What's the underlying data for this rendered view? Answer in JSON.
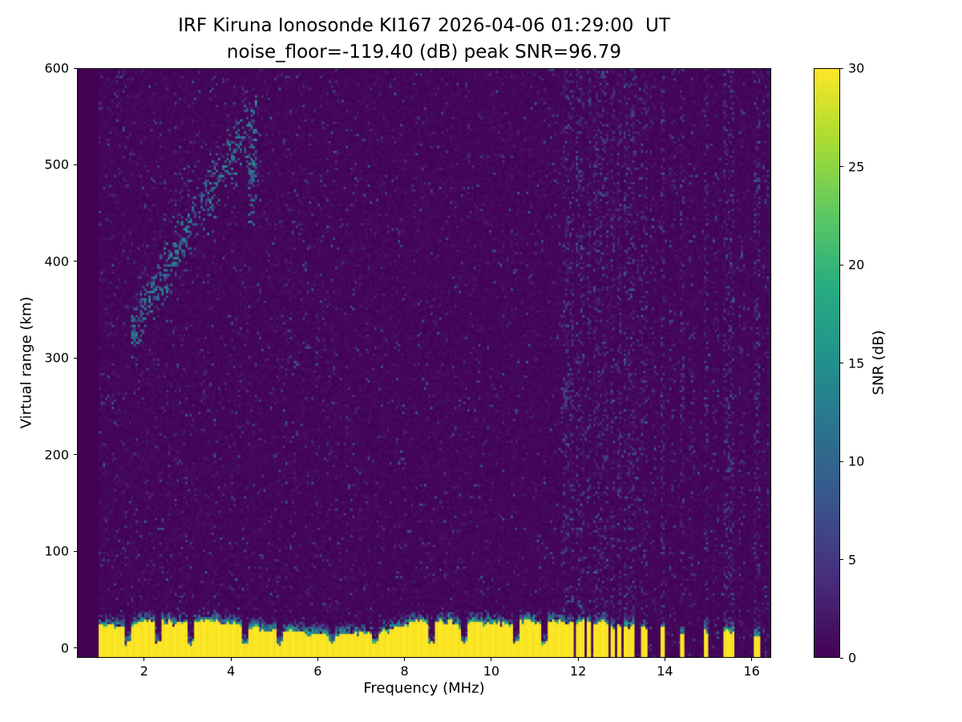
{
  "chart_data": {
    "type": "heatmap",
    "title": "IRF Kiruna Ionosonde KI167 2026-04-06 01:29:00  UT",
    "subtitle": "noise_floor=-119.40 (dB) peak SNR=96.79",
    "xlabel": "Frequency (MHz)",
    "ylabel": "Virtual range (km)",
    "colorbar_label": "SNR (dB)",
    "colormap": "viridis",
    "xlim": [
      0.45,
      16.45
    ],
    "ylim": [
      -10,
      600
    ],
    "xticks": [
      2,
      4,
      6,
      8,
      10,
      12,
      14,
      16
    ],
    "yticks": [
      0,
      100,
      200,
      300,
      400,
      500,
      600
    ],
    "colorbar_ticks": [
      0,
      5,
      10,
      15,
      20,
      25,
      30
    ],
    "colorbar_range": [
      0,
      30
    ],
    "data_freq_range": [
      0.95,
      16.45
    ],
    "freq_step_mhz": 0.05,
    "range_step_km": 2.5,
    "features": {
      "noise_seed": 167,
      "background_noise_db": [
        0,
        11
      ],
      "ground_clutter": {
        "freq_range": [
          0.95,
          11.63
        ],
        "top_km_range": [
          11,
          24
        ],
        "snr_db": 30,
        "notch_freqs": [
          1.62,
          2.28,
          3.05,
          4.3,
          5.08,
          6.3,
          7.28,
          8.6,
          9.35,
          10.55,
          11.2
        ]
      },
      "rfi_stripes_mhz": [
        11.7,
        11.83,
        11.96,
        12.09,
        12.22,
        12.36,
        12.5,
        12.64,
        12.78,
        12.92,
        13.06,
        13.2,
        13.5,
        13.92,
        14.36,
        14.93,
        15.4,
        15.53,
        16.1
      ],
      "rfi_faint_mhz": [
        13.35,
        13.7,
        14.15,
        14.6,
        15.15,
        15.75,
        16.3
      ],
      "echo_traces": [
        {
          "freq_range": [
            1.7,
            3.1
          ],
          "range_start_km": 325,
          "range_end_km": 440,
          "spread_km": 36,
          "density": 0.5,
          "snr_db": [
            4,
            16
          ]
        },
        {
          "freq_range": [
            3.1,
            4.55
          ],
          "range_start_km": 440,
          "range_end_km": 550,
          "spread_km": 42,
          "density": 0.4,
          "snr_db": [
            4,
            16
          ]
        },
        {
          "freq_range": [
            2.55,
            3.25
          ],
          "range_start_km": 455,
          "range_end_km": 505,
          "spread_km": 26,
          "density": 0.14,
          "snr_db": [
            3,
            10
          ]
        },
        {
          "freq_range": [
            4.35,
            4.55
          ],
          "range_start_km": 495,
          "range_end_km": 495,
          "spread_km": 70,
          "density": 0.45,
          "snr_db": [
            5,
            17
          ]
        }
      ]
    }
  }
}
